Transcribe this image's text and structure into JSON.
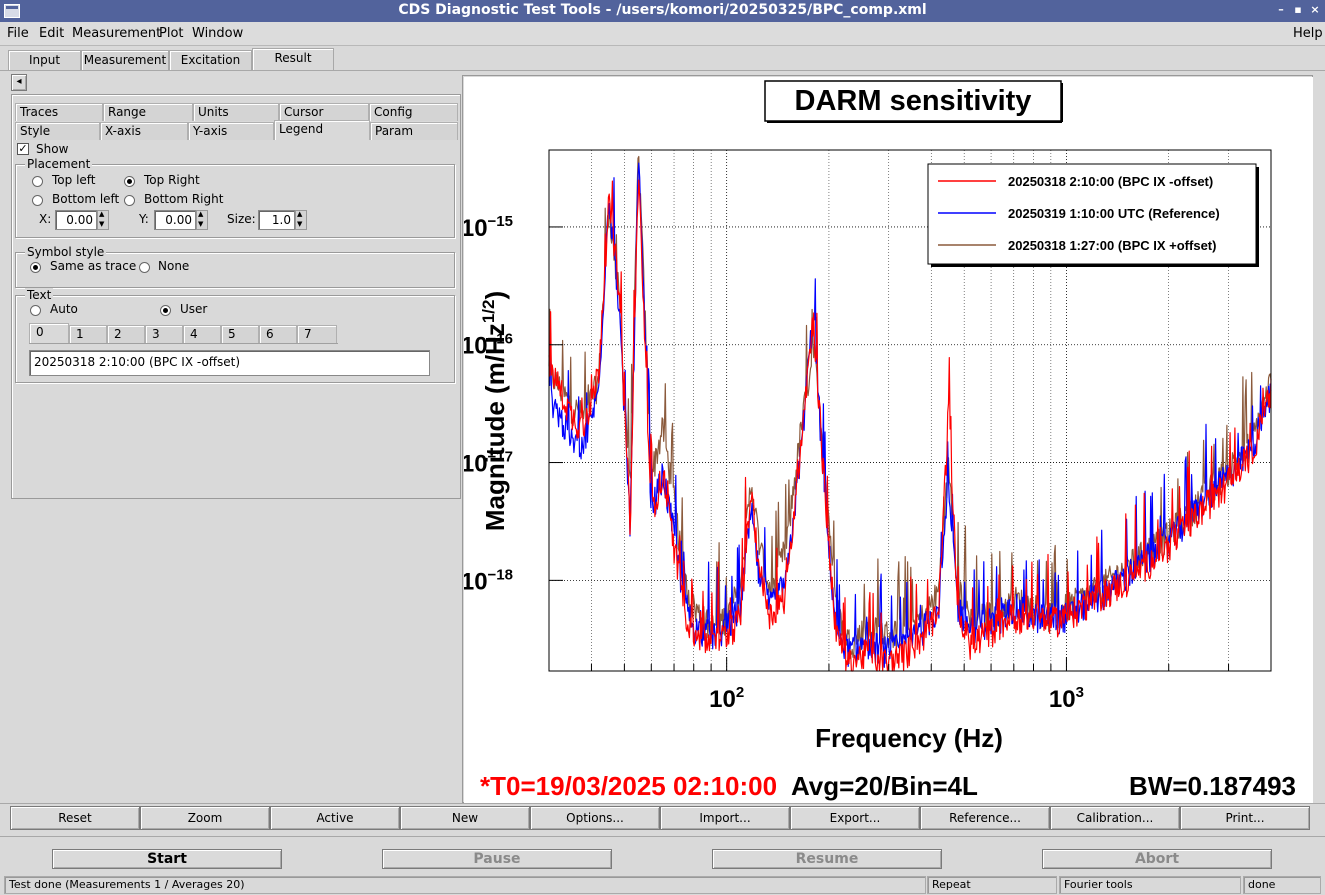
{
  "window": {
    "title": "CDS Diagnostic Test Tools - /users/komori/20250325/BPC_comp.xml",
    "minimize": "–",
    "maximize": "▪",
    "close": "×"
  },
  "menubar": {
    "file": "File",
    "edit": "Edit",
    "measurement": "Measurement",
    "plot": "Plot",
    "window": "Window",
    "help": "Help"
  },
  "main_tabs": [
    "Input",
    "Measurement",
    "Excitation",
    "Result"
  ],
  "collapse_arrow": "◂",
  "option_tabs_row1": [
    "Traces",
    "Range",
    "Units",
    "Cursor",
    "Config"
  ],
  "option_tabs_row2": [
    "Style",
    "X-axis",
    "Y-axis",
    "Legend",
    "Param"
  ],
  "legend_panel": {
    "show_label": "Show",
    "show_checked": true,
    "placement": {
      "label": "Placement",
      "top_left": "Top left",
      "top_right": "Top Right",
      "bottom_left": "Bottom left",
      "bottom_right": "Bottom Right",
      "selected": "Top Right",
      "x_label": "X:",
      "x_value": "0.00",
      "y_label": "Y:",
      "y_value": "0.00",
      "size_label": "Size:",
      "size_value": "1.0"
    },
    "symbol_style": {
      "label": "Symbol style",
      "same_as_trace": "Same as trace",
      "none": "None",
      "selected": "Same as trace"
    },
    "text": {
      "label": "Text",
      "auto": "Auto",
      "user": "User",
      "selected": "User",
      "trace_tabs": [
        "0",
        "1",
        "2",
        "3",
        "4",
        "5",
        "6",
        "7"
      ],
      "value": "20250318 2:10:00 (BPC IX -offset)"
    }
  },
  "plot": {
    "title": "DARM sensitivity",
    "xlabel": "Frequency (Hz)",
    "ylabel": "Magnitude (m/Hz",
    "ylabel_sup": "1/2",
    "ylabel_close": ")",
    "footer_t0": "*T0=19/03/2025 02:10:00",
    "footer_avg": "Avg=20/Bin=4L",
    "footer_bw": "BW=0.187493",
    "colors": {
      "red": "#ff0000",
      "blue": "#0000ff",
      "brown": "#8b5a3c"
    }
  },
  "chart_data": {
    "type": "line",
    "title": "DARM sensitivity",
    "xlabel": "Frequency (Hz)",
    "ylabel": "Magnitude (m/Hz^1/2)",
    "xscale": "log",
    "yscale": "log",
    "xlim": [
      30,
      4000
    ],
    "ylim": [
      1.7e-19,
      4.5e-15
    ],
    "xticks": [
      {
        "label": "10",
        "sup": "2",
        "value": 100
      },
      {
        "label": "10",
        "sup": "3",
        "value": 1000
      }
    ],
    "yticks": [
      {
        "label": "10",
        "sup": "−15",
        "value": 1e-15
      },
      {
        "label": "10",
        "sup": "−16",
        "value": 1e-16
      },
      {
        "label": "10",
        "sup": "−17",
        "value": 1e-17
      },
      {
        "label": "10",
        "sup": "−18",
        "value": 1e-18
      }
    ],
    "grid": true,
    "legend_placement": "top-right",
    "series": [
      {
        "name": "20250318 1:27:00 (BPC IX +offset)",
        "color": "#8b5a3c",
        "x": [
          30,
          35,
          38,
          42,
          45,
          48,
          52,
          55,
          60,
          65,
          70,
          75,
          80,
          90,
          100,
          110,
          118,
          125,
          135,
          150,
          165,
          180,
          195,
          210,
          230,
          260,
          300,
          340,
          380,
          420,
          450,
          480,
          520,
          580,
          650,
          700,
          800,
          900,
          1000,
          1200,
          1500,
          2000,
          2500,
          3000,
          3500,
          4000
        ],
        "y": [
          6e-17,
          3e-17,
          2.5e-17,
          5e-17,
          1.5e-15,
          3e-16,
          6e-18,
          4.5e-15,
          8e-18,
          2e-17,
          5e-18,
          1e-18,
          6e-19,
          4e-19,
          5e-19,
          9e-19,
          7e-18,
          2e-18,
          8e-19,
          2e-18,
          1.8e-17,
          1e-16,
          8e-18,
          6e-19,
          3e-19,
          4e-19,
          3.5e-19,
          4e-19,
          5e-19,
          8e-19,
          1e-17,
          9e-19,
          5e-19,
          5e-19,
          6e-19,
          7e-19,
          6e-19,
          5e-19,
          6e-19,
          8e-19,
          1.3e-18,
          2.5e-18,
          5e-18,
          9e-18,
          1.5e-17,
          5e-17
        ]
      },
      {
        "name": "20250319 1:10:00 UTC (Reference)",
        "color": "#0000ff",
        "x": [
          30,
          35,
          38,
          42,
          45,
          48,
          52,
          55,
          60,
          65,
          70,
          75,
          80,
          90,
          100,
          110,
          118,
          125,
          135,
          150,
          165,
          180,
          195,
          210,
          230,
          260,
          300,
          340,
          380,
          420,
          450,
          480,
          520,
          580,
          650,
          700,
          800,
          900,
          1000,
          1200,
          1500,
          2000,
          2500,
          3000,
          3500,
          4000
        ],
        "y": [
          4e-17,
          1.5e-17,
          1.5e-17,
          4e-17,
          2e-15,
          2.5e-16,
          3e-18,
          4e-15,
          4e-18,
          8e-18,
          2.5e-18,
          7e-19,
          4e-19,
          3.5e-19,
          4e-19,
          6e-19,
          4e-18,
          1e-18,
          6e-19,
          1e-18,
          1.2e-17,
          2e-16,
          4e-18,
          4e-19,
          2.5e-19,
          3e-19,
          2.5e-19,
          3e-19,
          4e-19,
          6e-19,
          6e-18,
          6e-19,
          4e-19,
          4.5e-19,
          5e-19,
          6e-19,
          5e-19,
          5e-19,
          5e-19,
          7e-19,
          1.1e-18,
          2.2e-18,
          4.5e-18,
          8e-18,
          1.3e-17,
          4e-17
        ]
      },
      {
        "name": "20250318 2:10:00 (BPC IX -offset)",
        "color": "#ff0000",
        "x": [
          30,
          35,
          38,
          42,
          45,
          48,
          52,
          55,
          60,
          65,
          70,
          75,
          80,
          90,
          100,
          110,
          118,
          125,
          135,
          150,
          165,
          180,
          195,
          210,
          230,
          260,
          300,
          340,
          380,
          420,
          450,
          480,
          520,
          580,
          650,
          700,
          800,
          900,
          1000,
          1200,
          1500,
          2000,
          2500,
          3000,
          3500,
          4000
        ],
        "y": [
          7e-17,
          2.5e-17,
          2e-17,
          6e-17,
          1.7e-15,
          3.5e-16,
          3e-18,
          3e-15,
          4e-18,
          8e-18,
          2e-18,
          6e-19,
          3.5e-19,
          3e-19,
          3.5e-19,
          5e-19,
          6e-18,
          1.2e-18,
          5e-19,
          8e-19,
          1.5e-17,
          1.8e-16,
          5e-18,
          3.5e-19,
          2e-19,
          2.5e-19,
          2e-19,
          2.5e-19,
          3.5e-19,
          5e-19,
          3e-17,
          5e-19,
          3e-19,
          3.5e-19,
          4.5e-19,
          5e-19,
          5e-19,
          4.5e-19,
          5e-19,
          7e-19,
          1e-18,
          2e-18,
          4e-18,
          7e-18,
          1.2e-17,
          4e-17
        ]
      }
    ],
    "legend_order": [
      "20250318 2:10:00 (BPC IX -offset)",
      "20250319 1:10:00 UTC (Reference)",
      "20250318 1:27:00 (BPC IX +offset)"
    ]
  },
  "action_buttons": [
    "Reset",
    "Zoom",
    "Active",
    "New",
    "Options...",
    "Import...",
    "Export...",
    "Reference...",
    "Calibration...",
    "Print..."
  ],
  "run_buttons": {
    "start": "Start",
    "pause": "Pause",
    "resume": "Resume",
    "abort": "Abort"
  },
  "statusbar": {
    "message": "Test done (Measurements 1 / Averages 20)",
    "repeat": "Repeat",
    "tools": "Fourier tools",
    "state": "done"
  }
}
